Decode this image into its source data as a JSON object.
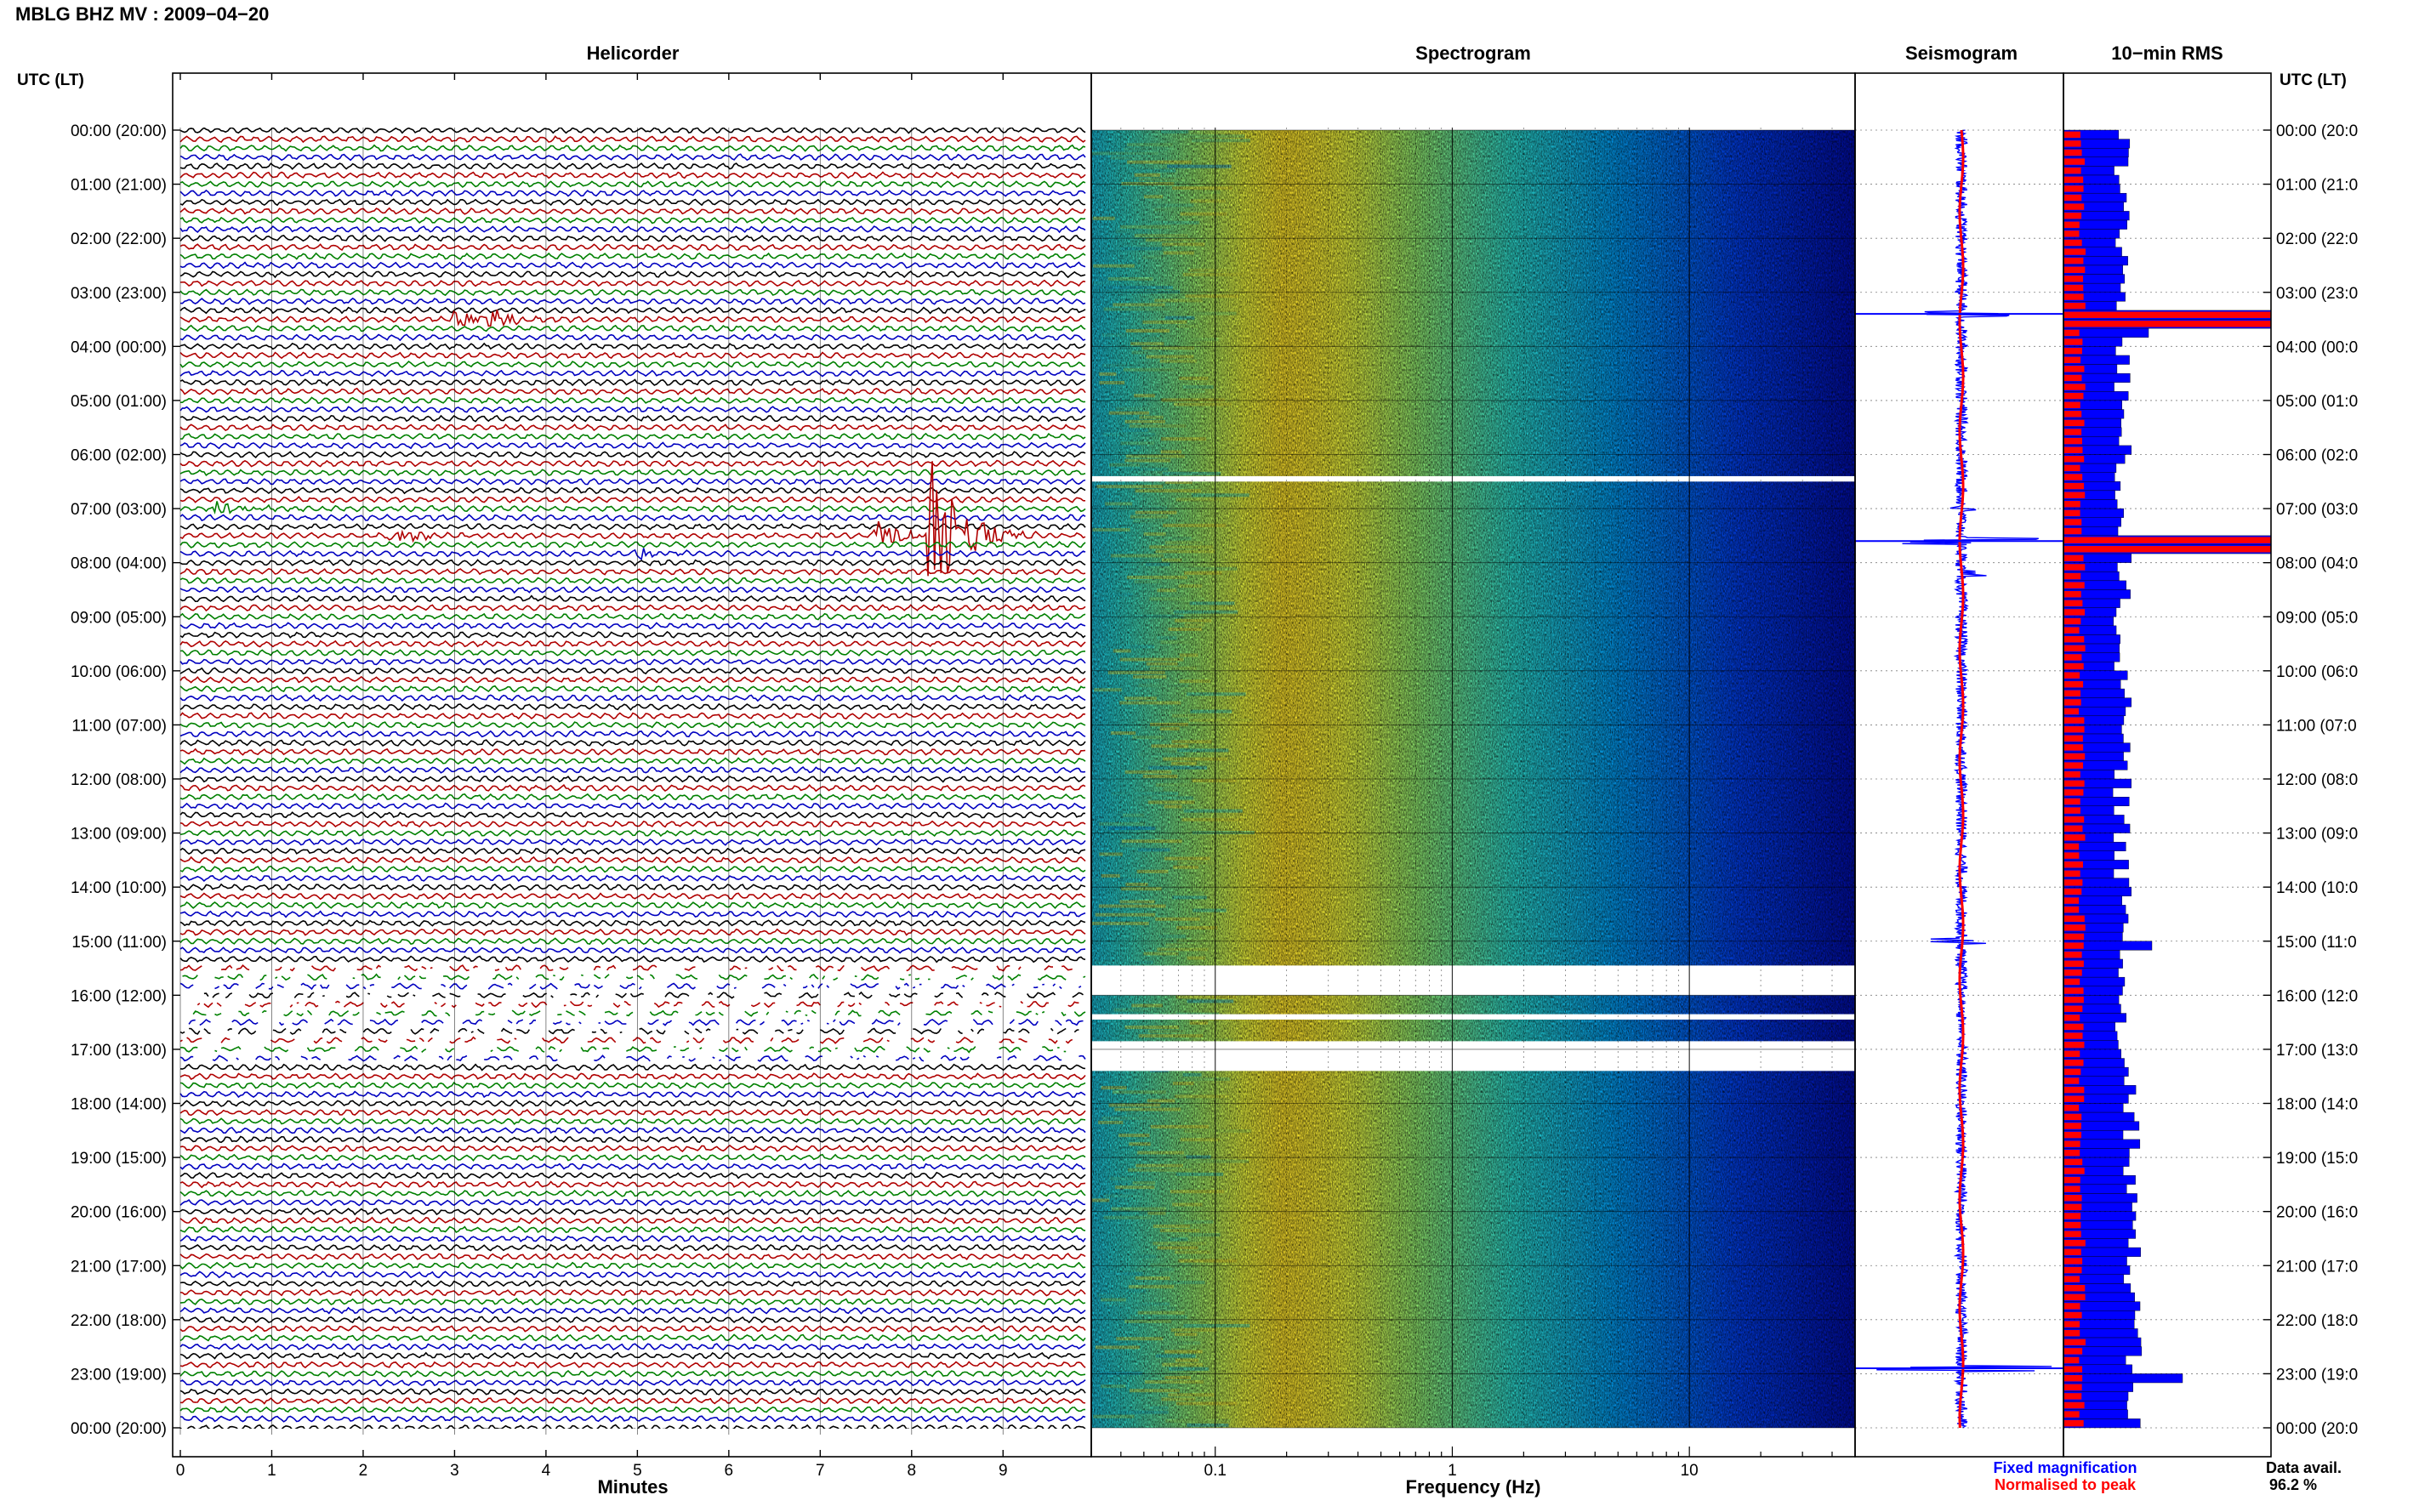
{
  "title": "MBLG BHZ MV : 2009−04−20",
  "panels": {
    "helicorder": "Helicorder",
    "spectrogram": "Spectrogram",
    "seismogram": "Seismogram",
    "rms": "10−min RMS"
  },
  "left_axis_header": "UTC (LT)",
  "right_axis_header": "UTC (LT)",
  "time_labels_left": [
    "00:00 (20:00)",
    "01:00 (21:00)",
    "02:00 (22:00)",
    "03:00 (23:00)",
    "04:00 (00:00)",
    "05:00 (01:00)",
    "06:00 (02:00)",
    "07:00 (03:00)",
    "08:00 (04:00)",
    "09:00 (05:00)",
    "10:00 (06:00)",
    "11:00 (07:00)",
    "12:00 (08:00)",
    "13:00 (09:00)",
    "14:00 (10:00)",
    "15:00 (11:00)",
    "16:00 (12:00)",
    "17:00 (13:00)",
    "18:00 (14:00)",
    "19:00 (15:00)",
    "20:00 (16:00)",
    "21:00 (17:00)",
    "22:00 (18:00)",
    "23:00 (19:00)",
    "00:00 (20:00)"
  ],
  "time_labels_right": [
    "00:00 (20:0",
    "01:00 (21:0",
    "02:00 (22:0",
    "03:00 (23:0",
    "04:00 (00:0",
    "05:00 (01:0",
    "06:00 (02:0",
    "07:00 (03:0",
    "08:00 (04:0",
    "09:00 (05:0",
    "10:00 (06:0",
    "11:00 (07:0",
    "12:00 (08:0",
    "13:00 (09:0",
    "14:00 (10:0",
    "15:00 (11:0",
    "16:00 (12:0",
    "17:00 (13:0",
    "18:00 (14:0",
    "19:00 (15:0",
    "20:00 (16:0",
    "21:00 (17:0",
    "22:00 (18:0",
    "23:00 (19:0",
    "00:00 (20:0"
  ],
  "footer": {
    "fixed_magnification": "Fixed magnification",
    "normalised_to_peak": "Normalised to peak",
    "data_avail_label": "Data avail.",
    "data_avail_value": "96.2 %"
  },
  "colors": {
    "trace_cycle": [
      "#000000",
      "#b00000",
      "#008000",
      "#0000c0"
    ],
    "rms_fixed": "#0000ff",
    "rms_peak": "#ff0000",
    "seismogram": "#0000ff",
    "seismogram_peak": "#ff0000"
  },
  "chart_data": [
    {
      "type": "helicorder",
      "title": "Helicorder",
      "xlabel": "Minutes",
      "x_ticks": [
        "0",
        "1",
        "2",
        "3",
        "4",
        "5",
        "6",
        "7",
        "8",
        "9"
      ],
      "xlim": [
        0,
        10
      ],
      "ylim_hours": [
        0,
        24
      ],
      "lines_per_hour": 6,
      "events": [
        {
          "hour": 3.3,
          "minute": 2.6,
          "amplitude": 3.5,
          "color": "#000000"
        },
        {
          "hour": 3.5,
          "minute": 3.4,
          "amplitude": 1.2,
          "color": "#000000"
        },
        {
          "hour": 3.5,
          "minute": 3.0,
          "amplitude": 1.0,
          "color": "#b00000"
        },
        {
          "hour": 7.0,
          "minute": 0.4,
          "amplitude": 1.2,
          "color": "#0000c0"
        },
        {
          "hour": 7.5,
          "minute": 2.3,
          "amplitude": 0.9,
          "color": "#b00000"
        },
        {
          "hour": 7.5,
          "minute": 7.6,
          "amplitude": 2.5,
          "color": "#b00000"
        },
        {
          "hour": 7.5,
          "minute": 8.2,
          "amplitude": 12.0,
          "color": "#b00000"
        },
        {
          "hour": 7.83,
          "minute": 5.0,
          "amplitude": 0.8,
          "color": "#008000"
        },
        {
          "hour": 14.9,
          "minute": 3.9,
          "amplitude": 1.2,
          "color": "#0000c0"
        },
        {
          "hour": 19.6,
          "minute": 6.2,
          "amplitude": 0.7,
          "color": "#0000c0"
        },
        {
          "hour": 22.9,
          "minute": 0.8,
          "amplitude": 3.0,
          "color": "#0000c0"
        }
      ],
      "gaps_hours": [
        [
          15.5,
          17.3
        ]
      ]
    },
    {
      "type": "heatmap",
      "title": "Spectrogram",
      "xlabel": "Frequency (Hz)",
      "x_scale": "log",
      "x_ticks": [
        "0.1",
        "1",
        "10"
      ],
      "xlim": [
        0.03,
        50
      ],
      "peak_frequency_hz": 0.2,
      "gaps_hours": [
        [
          6.4,
          6.5
        ],
        [
          15.45,
          16.0
        ],
        [
          16.35,
          16.45
        ],
        [
          16.85,
          17.4
        ]
      ]
    },
    {
      "type": "line",
      "title": "Seismogram",
      "spikes": [
        {
          "hour": 3.4,
          "amplitude": 0.55
        },
        {
          "hour": 7.0,
          "amplitude": 0.15
        },
        {
          "hour": 7.6,
          "amplitude": 1.0
        },
        {
          "hour": 8.2,
          "amplitude": 0.2
        },
        {
          "hour": 15.0,
          "amplitude": 0.3
        },
        {
          "hour": 22.9,
          "amplitude": 1.0
        }
      ]
    },
    {
      "type": "bar",
      "title": "10−min RMS",
      "series": [
        {
          "name": "Fixed magnification",
          "color": "#0000ff"
        },
        {
          "name": "Normalised to peak",
          "color": "#ff0000"
        }
      ],
      "spikes_hours": [
        3.4,
        7.6
      ]
    }
  ]
}
